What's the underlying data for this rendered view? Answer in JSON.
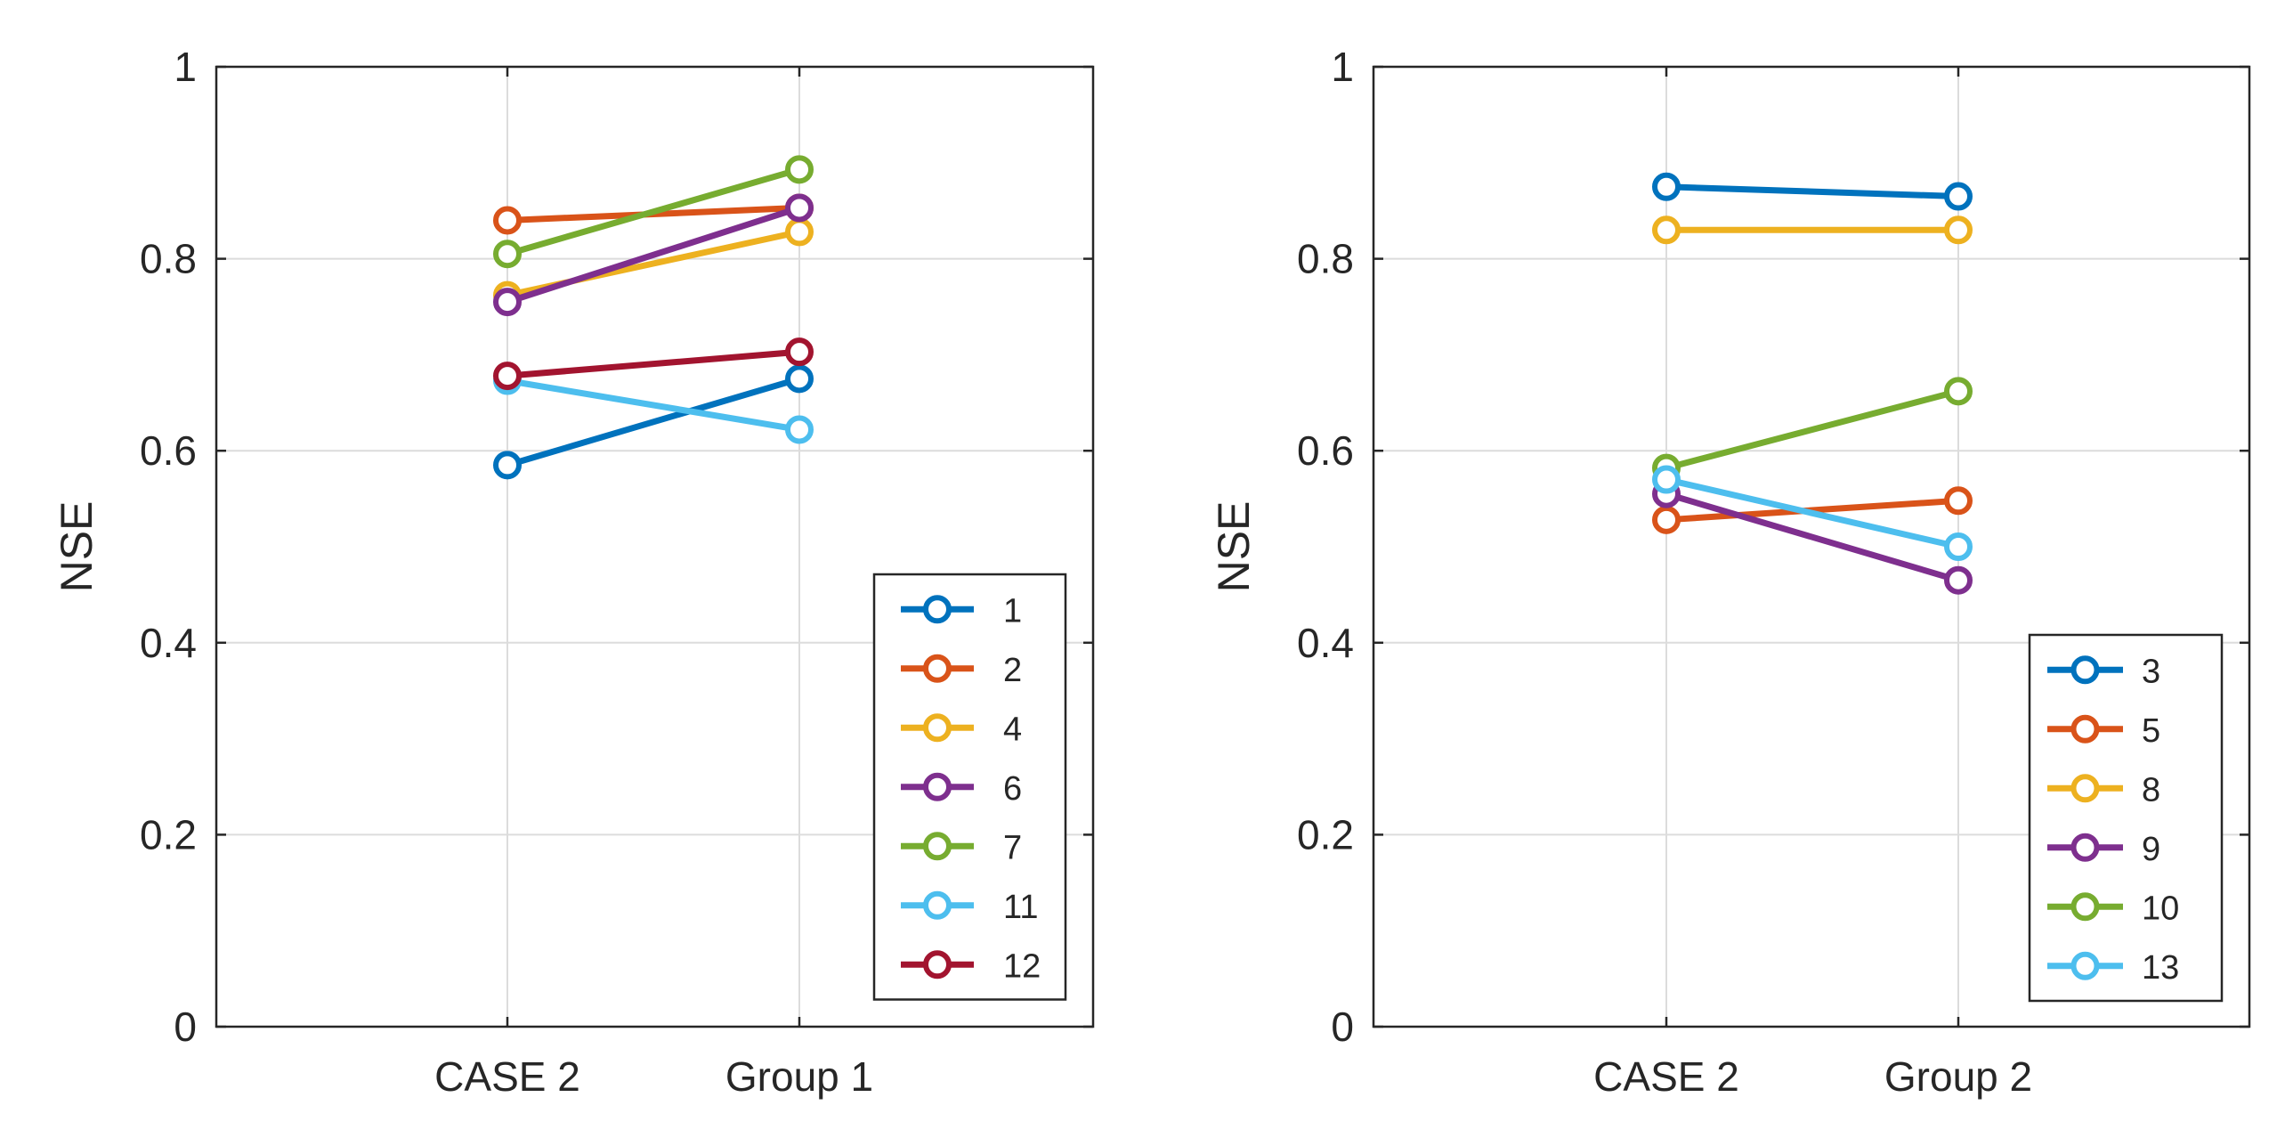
{
  "chart_data": [
    {
      "type": "line",
      "title": "",
      "xlabel": "",
      "ylabel": "NSE",
      "categories": [
        "CASE 2",
        "Group 1"
      ],
      "ylim": [
        0,
        1
      ],
      "yticks": [
        0,
        0.2,
        0.4,
        0.6,
        0.8,
        1
      ],
      "ytick_labels": [
        "0",
        "0.2",
        "0.4",
        "0.6",
        "0.8",
        "1"
      ],
      "grid": true,
      "legend_position": "bottom-right",
      "series": [
        {
          "name": "1",
          "color": "#0072BD",
          "values": [
            0.585,
            0.675
          ]
        },
        {
          "name": "2",
          "color": "#D95319",
          "values": [
            0.84,
            0.853
          ]
        },
        {
          "name": "4",
          "color": "#EDB120",
          "values": [
            0.762,
            0.828
          ]
        },
        {
          "name": "6",
          "color": "#7E2F8E",
          "values": [
            0.755,
            0.853
          ]
        },
        {
          "name": "7",
          "color": "#77AC30",
          "values": [
            0.805,
            0.893
          ]
        },
        {
          "name": "11",
          "color": "#4DBEEE",
          "values": [
            0.673,
            0.622
          ]
        },
        {
          "name": "12",
          "color": "#A2142F",
          "values": [
            0.678,
            0.703
          ]
        }
      ]
    },
    {
      "type": "line",
      "title": "",
      "xlabel": "",
      "ylabel": "NSE",
      "categories": [
        "CASE 2",
        "Group 2"
      ],
      "ylim": [
        0,
        1
      ],
      "yticks": [
        0,
        0.2,
        0.4,
        0.6,
        0.8,
        1
      ],
      "ytick_labels": [
        "0",
        "0.2",
        "0.4",
        "0.6",
        "0.8",
        "1"
      ],
      "grid": true,
      "legend_position": "bottom-right",
      "series": [
        {
          "name": "3",
          "color": "#0072BD",
          "values": [
            0.875,
            0.865
          ]
        },
        {
          "name": "5",
          "color": "#D95319",
          "values": [
            0.528,
            0.548
          ]
        },
        {
          "name": "8",
          "color": "#EDB120",
          "values": [
            0.83,
            0.83
          ]
        },
        {
          "name": "9",
          "color": "#7E2F8E",
          "values": [
            0.555,
            0.465
          ]
        },
        {
          "name": "10",
          "color": "#77AC30",
          "values": [
            0.582,
            0.662
          ]
        },
        {
          "name": "13",
          "color": "#4DBEEE",
          "values": [
            0.57,
            0.5
          ]
        }
      ]
    }
  ]
}
